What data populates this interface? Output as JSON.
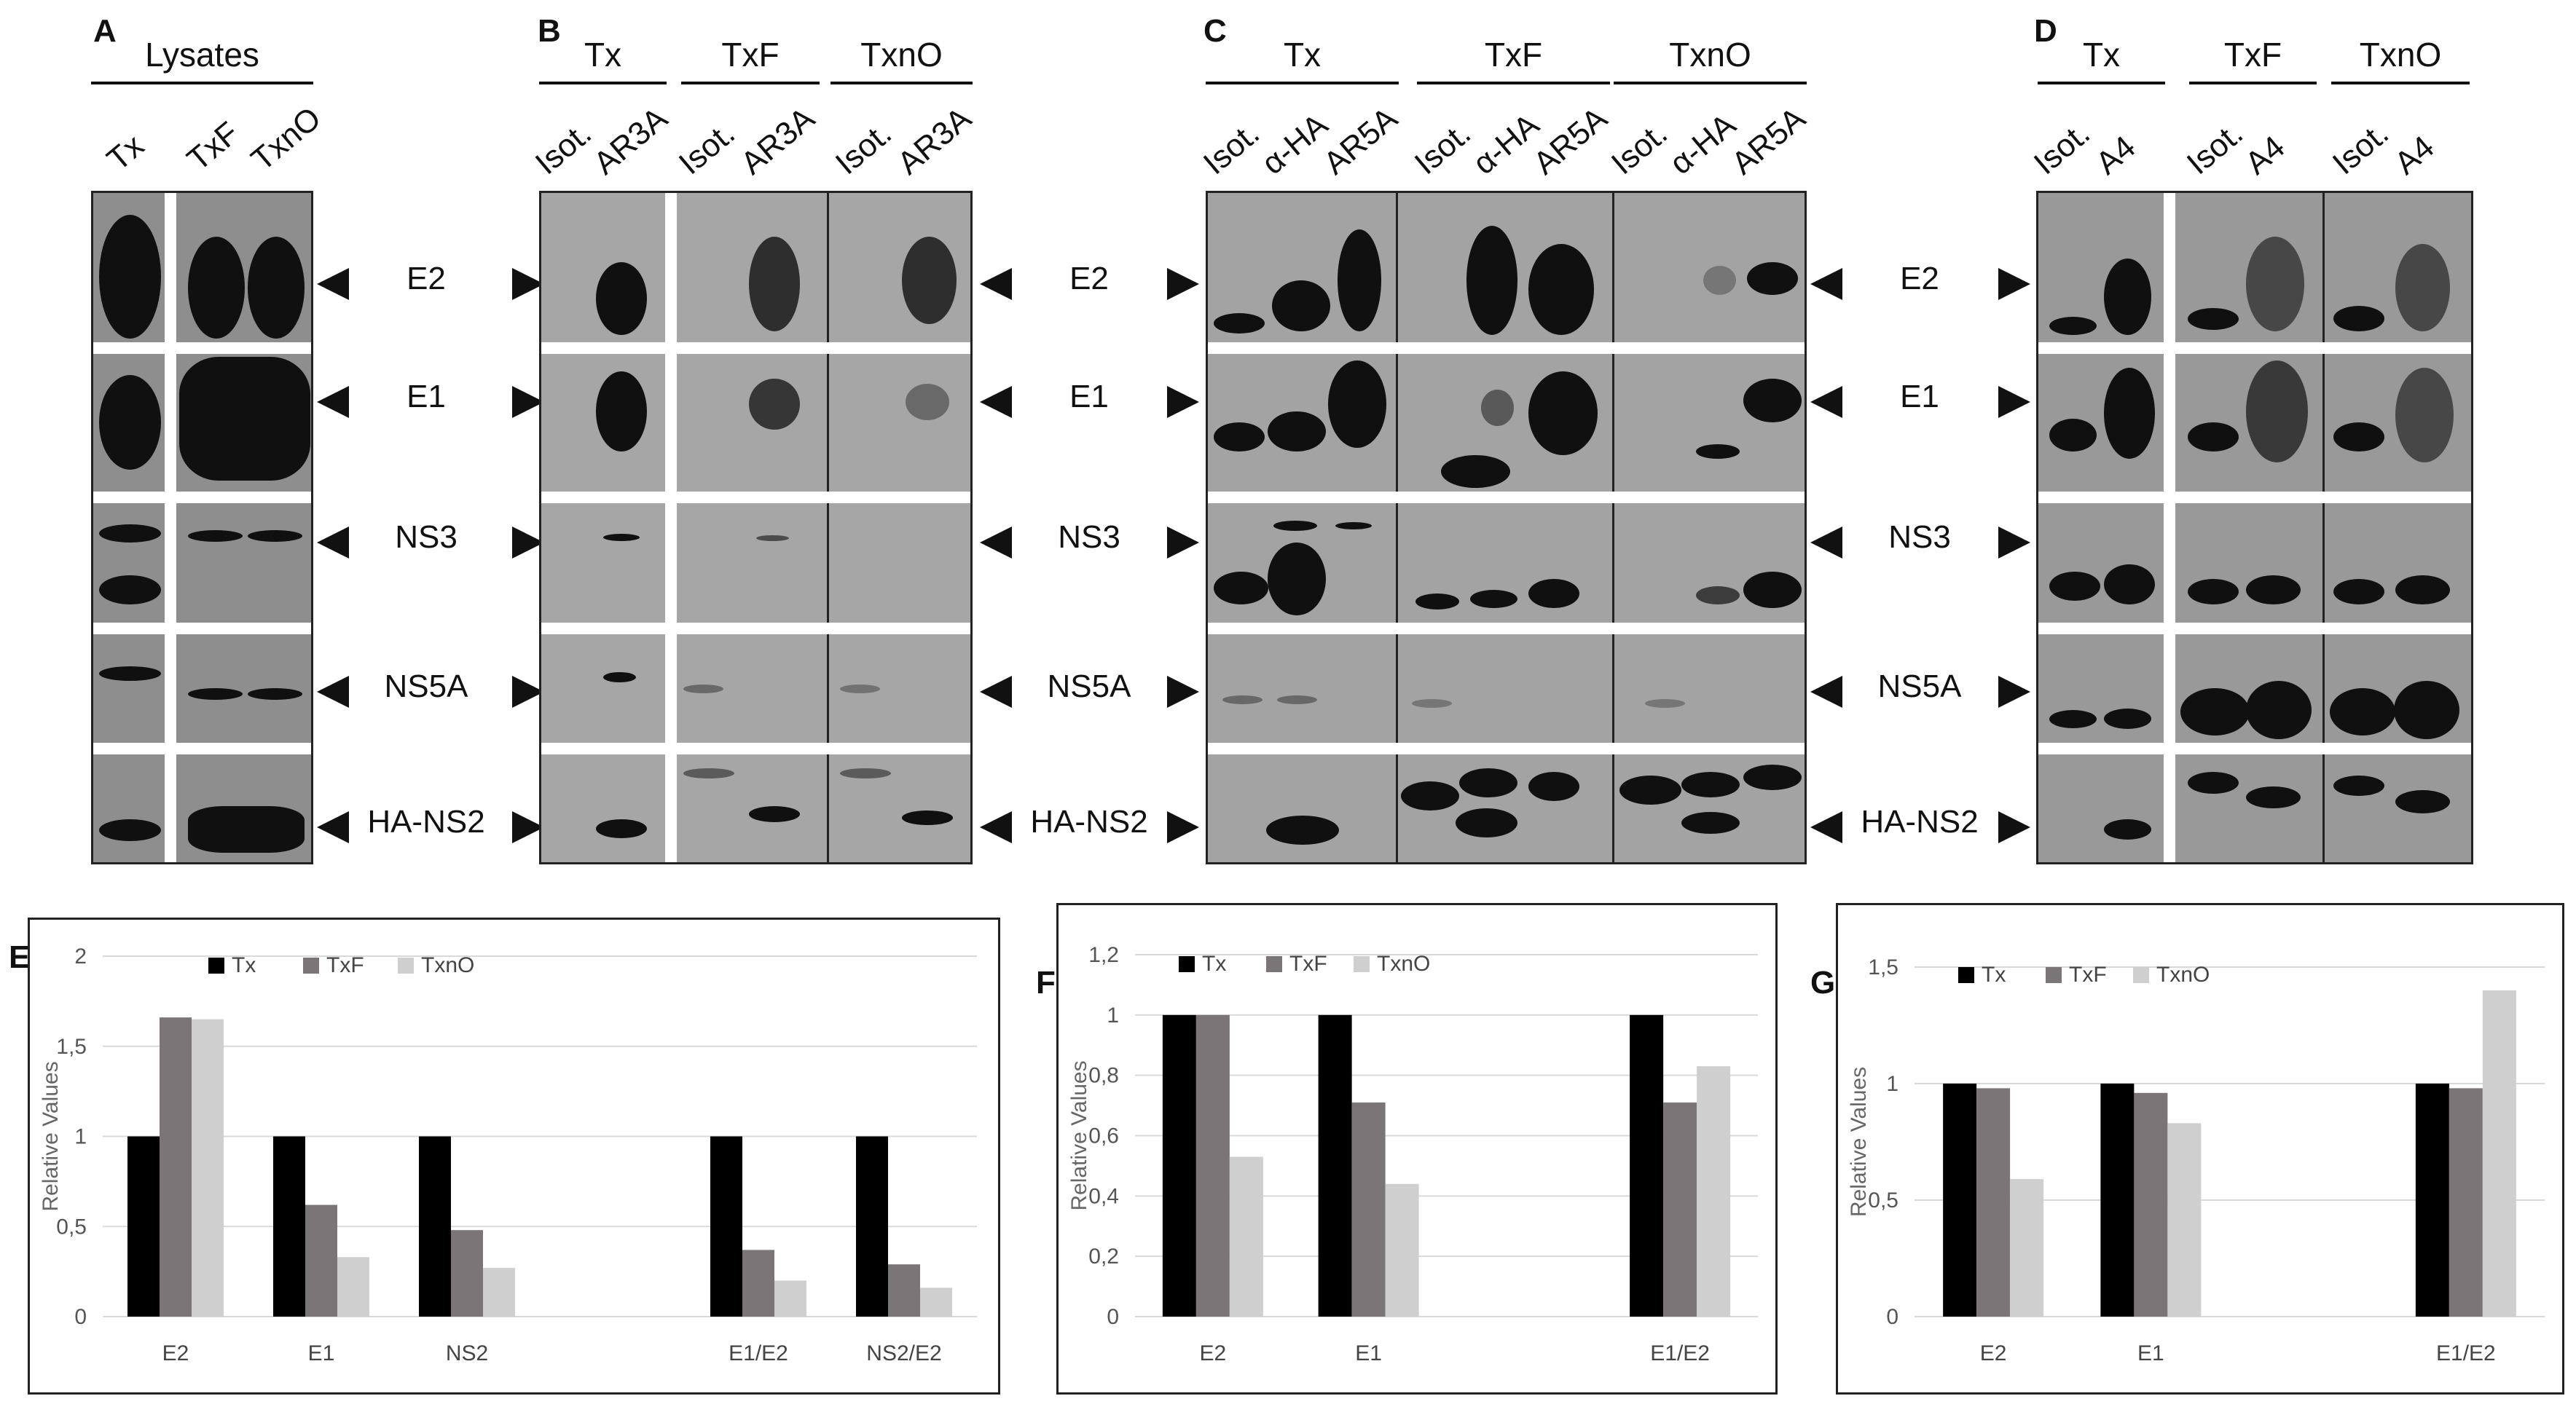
{
  "panel_letters": {
    "a": "A",
    "b": "B",
    "c": "C",
    "d": "D",
    "e": "E",
    "f": "F",
    "g": "G"
  },
  "panel_a": {
    "group": "Lysates",
    "lanes": [
      "Tx",
      "TxF",
      "TxnO"
    ]
  },
  "panel_b": {
    "groups": [
      "Tx",
      "TxF",
      "TxnO"
    ],
    "lanes": [
      "Isot.",
      "AR3A",
      "Isot.",
      "AR3A",
      "Isot.",
      "AR3A"
    ]
  },
  "panel_c": {
    "groups": [
      "Tx",
      "TxF",
      "TxnO"
    ],
    "lanes": [
      "Isot.",
      "α-HA",
      "AR5A",
      "Isot.",
      "α-HA",
      "AR5A",
      "Isot.",
      "α-HA",
      "AR5A"
    ]
  },
  "panel_d": {
    "groups": [
      "Tx",
      "TxF",
      "TxnO"
    ],
    "lanes": [
      "Isot.",
      "A4",
      "Isot.",
      "A4",
      "Isot.",
      "A4"
    ]
  },
  "markers": [
    "E2",
    "E1",
    "NS3",
    "NS5A",
    "HA-NS2"
  ],
  "colors": {
    "Tx": "#000000",
    "TxF": "#7a7677",
    "TxnO": "#cfcfcf",
    "blot": "#8e8e8e"
  },
  "chart_data": [
    {
      "type": "bar",
      "panel": "E",
      "ylabel": "Relative Values",
      "ylim": [
        0,
        2
      ],
      "yticks": [
        "0",
        "0,5",
        "1",
        "1,5",
        "2"
      ],
      "categories": [
        "E2",
        "E1",
        "NS2",
        "",
        "E1/E2",
        "NS2/E2"
      ],
      "legend": [
        "Tx",
        "TxF",
        "TxnO"
      ],
      "series": [
        {
          "name": "Tx",
          "values": [
            1,
            1,
            1,
            null,
            1,
            1
          ]
        },
        {
          "name": "TxF",
          "values": [
            1.66,
            0.62,
            0.48,
            null,
            0.37,
            0.29
          ]
        },
        {
          "name": "TxnO",
          "values": [
            1.65,
            0.33,
            0.27,
            null,
            0.2,
            0.16
          ]
        }
      ]
    },
    {
      "type": "bar",
      "panel": "F",
      "ylabel": "Relative Values",
      "ylim": [
        0,
        1.2
      ],
      "yticks": [
        "0",
        "0,2",
        "0,4",
        "0,6",
        "0,8",
        "1",
        "1,2"
      ],
      "categories": [
        "E2",
        "E1",
        "",
        "E1/E2"
      ],
      "legend": [
        "Tx",
        "TxF",
        "TxnO"
      ],
      "series": [
        {
          "name": "Tx",
          "values": [
            1,
            1,
            null,
            1
          ]
        },
        {
          "name": "TxF",
          "values": [
            1,
            0.71,
            null,
            0.71
          ]
        },
        {
          "name": "TxnO",
          "values": [
            0.53,
            0.44,
            null,
            0.83
          ]
        }
      ]
    },
    {
      "type": "bar",
      "panel": "G",
      "ylabel": "Relative Values",
      "ylim": [
        0,
        1.5
      ],
      "yticks": [
        "0",
        "0,5",
        "1",
        "1,5"
      ],
      "categories": [
        "E2",
        "E1",
        "",
        "E1/E2"
      ],
      "legend": [
        "Tx",
        "TxF",
        "TxnO"
      ],
      "series": [
        {
          "name": "Tx",
          "values": [
            1,
            1,
            null,
            1
          ]
        },
        {
          "name": "TxF",
          "values": [
            0.98,
            0.96,
            null,
            0.98
          ]
        },
        {
          "name": "TxnO",
          "values": [
            0.59,
            0.83,
            null,
            1.4
          ]
        }
      ]
    }
  ]
}
